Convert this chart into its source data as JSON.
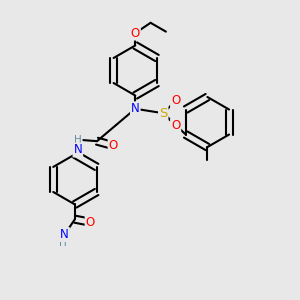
{
  "bg_color": "#e8e8e8",
  "bond_color": "#000000",
  "bond_width": 1.5,
  "atom_colors": {
    "N": "#0000ff",
    "O": "#ff0000",
    "S": "#ccaa00",
    "H": "#6090a0"
  },
  "font_size": 8.5,
  "fig_width": 3.0,
  "fig_height": 3.0,
  "dpi": 100
}
